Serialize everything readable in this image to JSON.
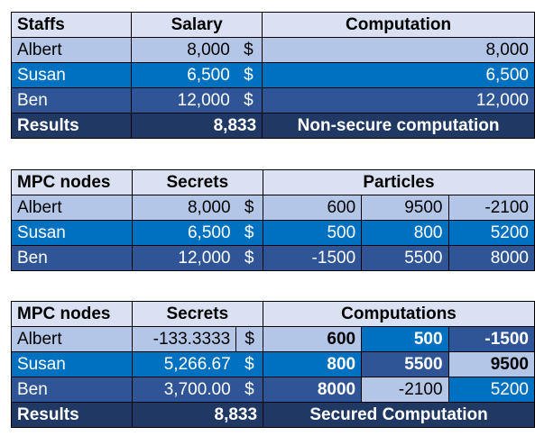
{
  "table1": {
    "headers": [
      "Staffs",
      "Salary",
      "Computation"
    ],
    "rows": [
      {
        "name": "Albert",
        "salary": "8,000",
        "cur": "$",
        "comp": "8,000"
      },
      {
        "name": "Susan",
        "salary": "6,500",
        "cur": "$",
        "comp": "6,500"
      },
      {
        "name": "Ben",
        "salary": "12,000",
        "cur": "$",
        "comp": "12,000"
      }
    ],
    "result": {
      "label": "Results",
      "value": "8,833",
      "note": "Non-secure computation"
    }
  },
  "table2": {
    "headers": [
      "MPC nodes",
      "Secrets",
      "Particles"
    ],
    "rows": [
      {
        "name": "Albert",
        "secret": "8,000",
        "cur": "$",
        "p": [
          "600",
          "9500",
          "-2100"
        ]
      },
      {
        "name": "Susan",
        "secret": "6,500",
        "cur": "$",
        "p": [
          "500",
          "800",
          "5200"
        ]
      },
      {
        "name": "Ben",
        "secret": "12,000",
        "cur": "$",
        "p": [
          "-1500",
          "5500",
          "8000"
        ]
      }
    ]
  },
  "table3": {
    "headers": [
      "MPC nodes",
      "Secrets",
      "Computations"
    ],
    "rows": [
      {
        "name": "Albert",
        "secret": "-133.3333",
        "cur": "$",
        "p": [
          "600",
          "500",
          "-1500"
        ]
      },
      {
        "name": "Susan",
        "secret": "5,266.67",
        "cur": "$",
        "p": [
          "800",
          "5500",
          "9500"
        ]
      },
      {
        "name": "Ben",
        "secret": "3,700.00",
        "cur": "$",
        "p": [
          "8000",
          "-2100",
          "5200"
        ]
      }
    ],
    "result": {
      "label": "Results",
      "value": "8,833",
      "note": "Secured Computation"
    }
  }
}
